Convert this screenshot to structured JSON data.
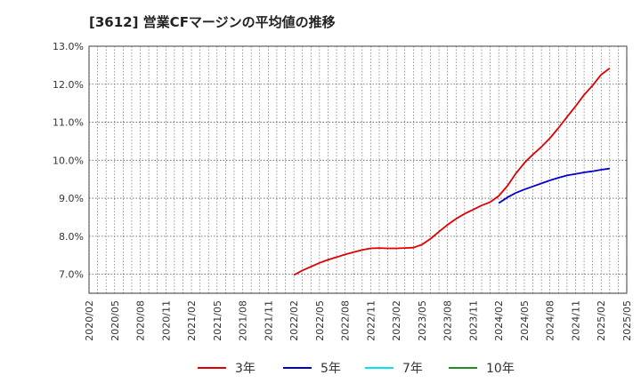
{
  "chart_data": {
    "type": "line",
    "title": "[3612]  営業CFマージンの平均値の推移",
    "xlabel": "",
    "ylabel": "",
    "ylim": [
      6.5,
      13.0
    ],
    "y_ticks": [
      "7.0%",
      "8.0%",
      "9.0%",
      "10.0%",
      "11.0%",
      "12.0%",
      "13.0%"
    ],
    "y_tick_values": [
      7.0,
      8.0,
      9.0,
      10.0,
      11.0,
      12.0,
      13.0
    ],
    "x_ticks": [
      "2020/02",
      "2020/05",
      "2020/08",
      "2020/11",
      "2021/02",
      "2021/05",
      "2021/08",
      "2021/11",
      "2022/02",
      "2022/05",
      "2022/08",
      "2022/11",
      "2023/02",
      "2023/05",
      "2023/08",
      "2023/11",
      "2024/02",
      "2024/05",
      "2024/08",
      "2024/11",
      "2025/02",
      "2025/05"
    ],
    "grid": true,
    "legend_position": "bottom",
    "series": [
      {
        "name": "3年",
        "color": "#e00000",
        "points": [
          [
            "2022/02",
            6.98
          ],
          [
            "2022/03",
            7.1
          ],
          [
            "2022/04",
            7.2
          ],
          [
            "2022/05",
            7.3
          ],
          [
            "2022/06",
            7.38
          ],
          [
            "2022/07",
            7.45
          ],
          [
            "2022/08",
            7.52
          ],
          [
            "2022/09",
            7.58
          ],
          [
            "2022/10",
            7.64
          ],
          [
            "2022/11",
            7.68
          ],
          [
            "2022/12",
            7.69
          ],
          [
            "2023/01",
            7.68
          ],
          [
            "2023/02",
            7.68
          ],
          [
            "2023/03",
            7.69
          ],
          [
            "2023/04",
            7.7
          ],
          [
            "2023/05",
            7.78
          ],
          [
            "2023/06",
            7.93
          ],
          [
            "2023/07",
            8.12
          ],
          [
            "2023/08",
            8.3
          ],
          [
            "2023/09",
            8.46
          ],
          [
            "2023/10",
            8.59
          ],
          [
            "2023/11",
            8.7
          ],
          [
            "2023/12",
            8.81
          ],
          [
            "2024/01",
            8.9
          ],
          [
            "2024/02",
            9.06
          ],
          [
            "2024/03",
            9.32
          ],
          [
            "2024/04",
            9.65
          ],
          [
            "2024/05",
            9.93
          ],
          [
            "2024/06",
            10.15
          ],
          [
            "2024/07",
            10.35
          ],
          [
            "2024/08",
            10.58
          ],
          [
            "2024/09",
            10.85
          ],
          [
            "2024/10",
            11.14
          ],
          [
            "2024/11",
            11.42
          ],
          [
            "2024/12",
            11.72
          ],
          [
            "2025/01",
            11.97
          ],
          [
            "2025/02",
            12.25
          ],
          [
            "2025/03",
            12.42
          ]
        ]
      },
      {
        "name": "5年",
        "color": "#0000cc",
        "points": [
          [
            "2024/02",
            8.87
          ],
          [
            "2024/03",
            9.02
          ],
          [
            "2024/04",
            9.14
          ],
          [
            "2024/05",
            9.23
          ],
          [
            "2024/06",
            9.31
          ],
          [
            "2024/07",
            9.39
          ],
          [
            "2024/08",
            9.47
          ],
          [
            "2024/09",
            9.54
          ],
          [
            "2024/10",
            9.6
          ],
          [
            "2024/11",
            9.64
          ],
          [
            "2024/12",
            9.68
          ],
          [
            "2025/01",
            9.71
          ],
          [
            "2025/02",
            9.75
          ],
          [
            "2025/03",
            9.78
          ]
        ]
      },
      {
        "name": "7年",
        "color": "#00e5ee",
        "points": []
      },
      {
        "name": "10年",
        "color": "#228b22",
        "points": []
      }
    ]
  }
}
